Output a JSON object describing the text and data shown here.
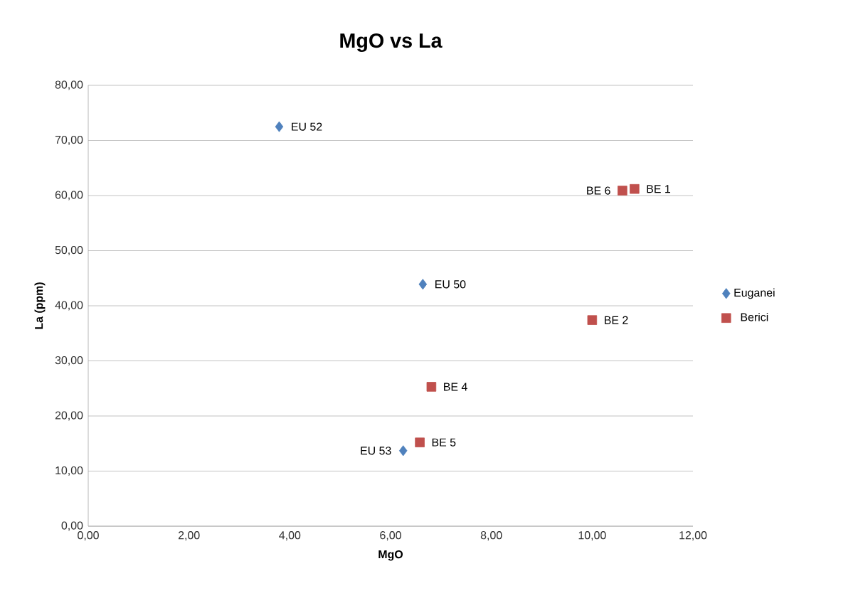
{
  "chart_data": {
    "type": "scatter",
    "title": "MgO vs La",
    "xlabel": "MgO",
    "ylabel": "La (ppm)",
    "series": [
      {
        "name": "Euganei",
        "color": "#4f81bd",
        "marker": "diamond",
        "x": [
          3.79,
          6.64,
          6.25
        ],
        "values": [
          72.5,
          43.9,
          13.7
        ]
      },
      {
        "name": "Berici",
        "color": "#c0504d",
        "marker": "square",
        "x": [
          10.84,
          10.0,
          6.81,
          6.58,
          10.6
        ],
        "values": [
          61.2,
          37.4,
          25.3,
          15.2,
          60.9
        ]
      }
    ],
    "annotations": [
      {
        "text": "EU 52",
        "x": 3.79,
        "y": 72.5
      },
      {
        "text": "EU 50",
        "x": 6.64,
        "y": 43.9
      },
      {
        "text": "EU 53",
        "x": 6.25,
        "y": 13.7
      },
      {
        "text": "BE 1",
        "x": 10.84,
        "y": 61.2
      },
      {
        "text": "BE 2",
        "x": 10.0,
        "y": 37.4
      },
      {
        "text": "BE 4",
        "x": 6.81,
        "y": 25.3
      },
      {
        "text": "BE 5",
        "x": 6.58,
        "y": 15.2
      },
      {
        "text": "BE 6",
        "x": 10.6,
        "y": 60.9
      }
    ],
    "xlim": [
      0,
      12
    ],
    "xticks": [
      {
        "value": 0,
        "label": "0,00"
      },
      {
        "value": 2,
        "label": "2,00"
      },
      {
        "value": 4,
        "label": "4,00"
      },
      {
        "value": 6,
        "label": "6,00"
      },
      {
        "value": 8,
        "label": "8,00"
      },
      {
        "value": 10,
        "label": "10,00"
      },
      {
        "value": 12,
        "label": "12,00"
      }
    ],
    "ylim": [
      0,
      80
    ],
    "yticks": [
      {
        "value": 0,
        "label": "0,00"
      },
      {
        "value": 10,
        "label": "10,00"
      },
      {
        "value": 20,
        "label": "20,00"
      },
      {
        "value": 30,
        "label": "30,00"
      },
      {
        "value": 40,
        "label": "40,00"
      },
      {
        "value": 50,
        "label": "50,00"
      },
      {
        "value": 60,
        "label": "60,00"
      },
      {
        "value": 70,
        "label": "70,00"
      },
      {
        "value": 80,
        "label": "80,00"
      }
    ],
    "grid": "y",
    "legend": "right"
  }
}
